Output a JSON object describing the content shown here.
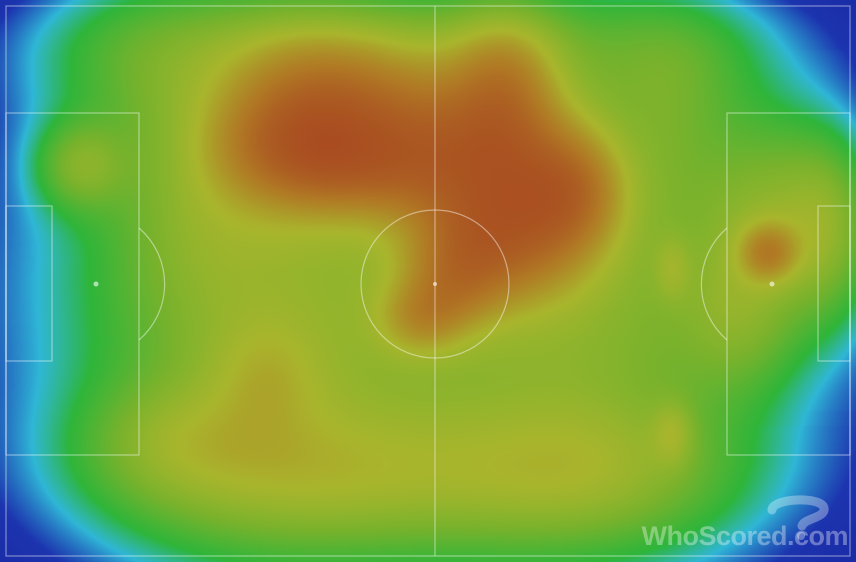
{
  "watermark": {
    "text": "WhoScored.com",
    "icon": "question-mark-logo-icon"
  },
  "colors": {
    "background": "#1a1f9a",
    "scale": [
      "#1a1f9a",
      "#2fb6d6",
      "#2eb53a",
      "#a9b52c",
      "#a5341f"
    ],
    "lines": "#ffffff"
  }
}
